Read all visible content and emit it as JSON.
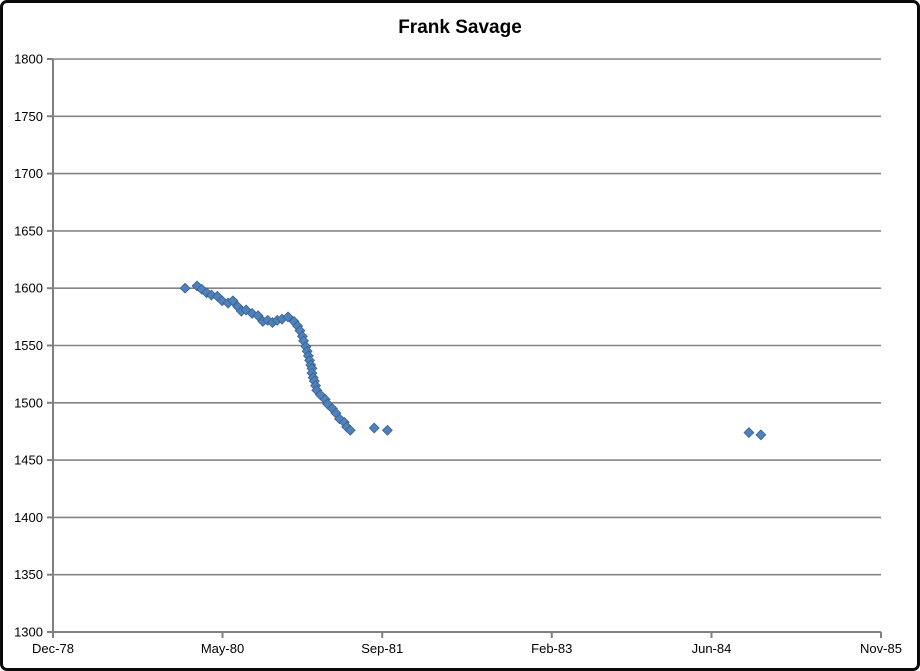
{
  "chart_data": {
    "type": "scatter",
    "title": "Frank Savage",
    "xlabel": "",
    "ylabel": "",
    "legend_position": "none",
    "grid": "horizontal",
    "x_axis": {
      "min": 1978.917,
      "max": 1985.833,
      "ticks": [
        {
          "label": "Dec-78",
          "value": 1978.917
        },
        {
          "label": "May-80",
          "value": 1980.333
        },
        {
          "label": "Sep-81",
          "value": 1981.667
        },
        {
          "label": "Feb-83",
          "value": 1983.083
        },
        {
          "label": "Jun-84",
          "value": 1984.417
        },
        {
          "label": "Nov-85",
          "value": 1985.833
        }
      ]
    },
    "y_axis": {
      "min": 1300,
      "max": 1800,
      "step": 50,
      "tick_labels": [
        "1300",
        "1350",
        "1400",
        "1450",
        "1500",
        "1550",
        "1600",
        "1650",
        "1700",
        "1750",
        "1800"
      ]
    },
    "colors": {
      "marker_fill": "#4F81BD",
      "marker_stroke": "#38618C",
      "axis": "#808080",
      "grid": "#858585",
      "text": "#000000",
      "background": "#FFFFFF",
      "frame_border": "#0A0A0A"
    },
    "series": [
      {
        "name": "Frank Savage",
        "marker": "diamond",
        "points": [
          [
            1980.02,
            1600
          ],
          [
            1980.12,
            1602
          ],
          [
            1980.16,
            1599
          ],
          [
            1980.2,
            1596
          ],
          [
            1980.24,
            1594
          ],
          [
            1980.29,
            1593
          ],
          [
            1980.33,
            1589
          ],
          [
            1980.38,
            1587
          ],
          [
            1980.42,
            1589
          ],
          [
            1980.46,
            1584
          ],
          [
            1980.49,
            1580
          ],
          [
            1980.53,
            1581
          ],
          [
            1980.58,
            1578
          ],
          [
            1980.63,
            1576
          ],
          [
            1980.67,
            1571
          ],
          [
            1980.71,
            1572
          ],
          [
            1980.75,
            1570
          ],
          [
            1980.79,
            1572
          ],
          [
            1980.83,
            1573
          ],
          [
            1980.88,
            1575
          ],
          [
            1980.93,
            1571
          ],
          [
            1980.96,
            1567
          ],
          [
            1980.98,
            1563
          ],
          [
            1981.0,
            1558
          ],
          [
            1981.01,
            1554
          ],
          [
            1981.03,
            1549
          ],
          [
            1981.04,
            1545
          ],
          [
            1981.05,
            1541
          ],
          [
            1981.06,
            1537
          ],
          [
            1981.07,
            1533
          ],
          [
            1981.08,
            1530
          ],
          [
            1981.08,
            1526
          ],
          [
            1981.09,
            1522
          ],
          [
            1981.1,
            1519
          ],
          [
            1981.11,
            1515
          ],
          [
            1981.12,
            1511
          ],
          [
            1981.15,
            1507
          ],
          [
            1981.19,
            1503
          ],
          [
            1981.21,
            1499
          ],
          [
            1981.25,
            1495
          ],
          [
            1981.28,
            1491
          ],
          [
            1981.31,
            1486
          ],
          [
            1981.35,
            1483
          ],
          [
            1981.37,
            1479
          ],
          [
            1981.4,
            1476
          ],
          [
            1981.6,
            1478
          ],
          [
            1981.71,
            1476
          ],
          [
            1984.73,
            1474
          ],
          [
            1984.83,
            1472
          ]
        ]
      }
    ]
  }
}
